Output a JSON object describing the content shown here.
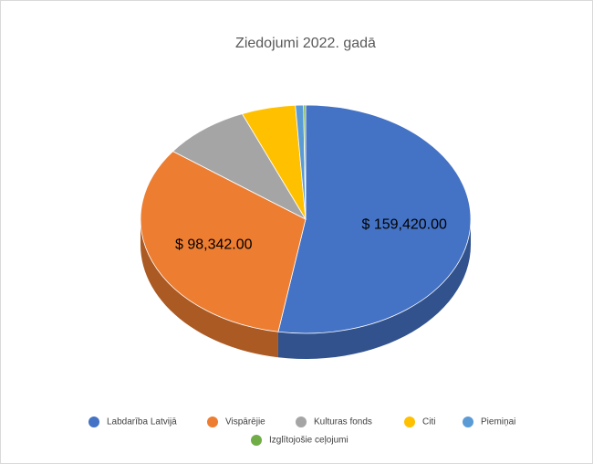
{
  "chart_data": {
    "type": "pie3d",
    "title": "Ziedojumi 2022. gadā",
    "categories": [
      "Labdarība Latvijā",
      "Vispārējie",
      "Kulturas fonds",
      "Citi",
      "Piemiņai",
      "Izglītojošie ceļojumi"
    ],
    "values": [
      159420,
      98342,
      26000,
      16000,
      2400,
      600
    ],
    "value_labels": [
      "$ 159,420.00",
      "$ 98,342.00",
      null,
      null,
      null,
      null
    ],
    "colors": [
      "#4472c4",
      "#ed7d31",
      "#a5a5a5",
      "#ffc000",
      "#5b9bd5",
      "#70ad47"
    ],
    "legend": "bottom"
  }
}
